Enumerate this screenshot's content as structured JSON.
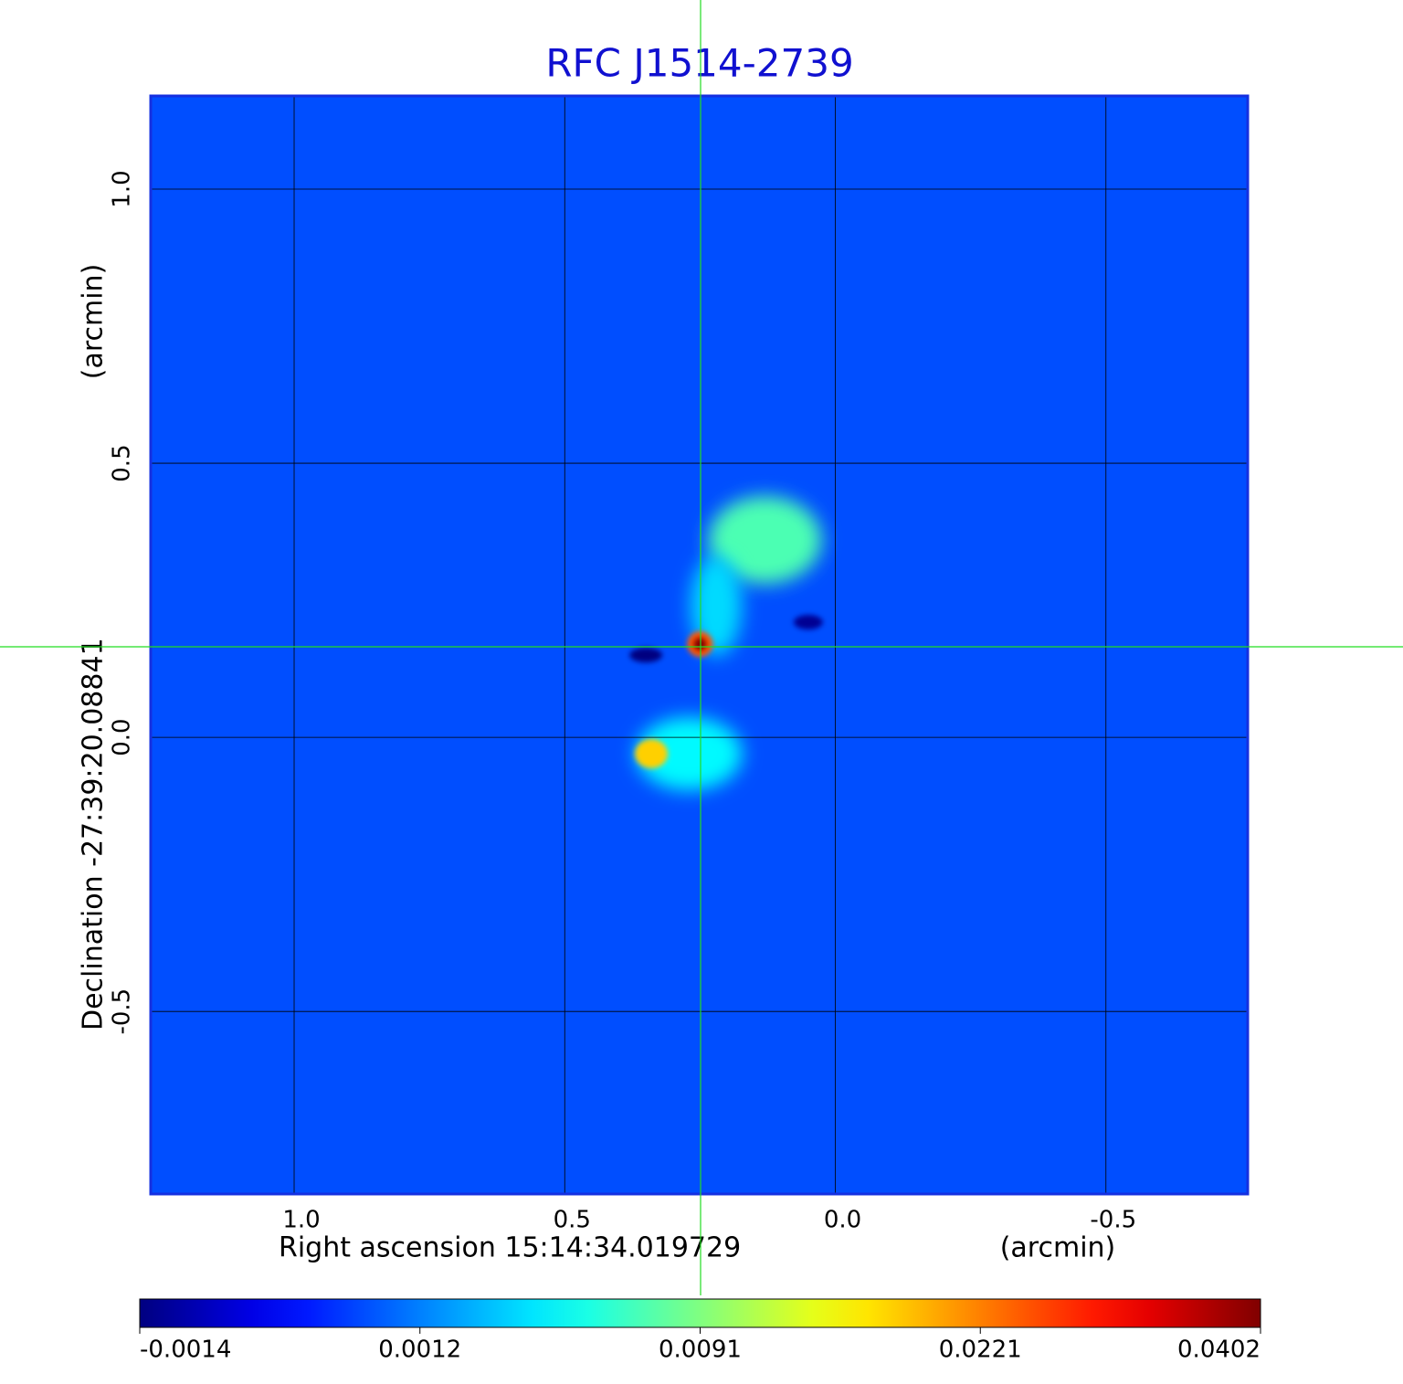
{
  "chart_data": {
    "type": "image",
    "title": "RFC J1514-2739",
    "x_label": "Right ascension  15:14:34.019729",
    "x_unit": "(arcmin)",
    "y_label": "Declination  -27:39:20.08841",
    "y_unit": "(arcmin)",
    "xlim": [
      1.265,
      -0.762
    ],
    "ylim": [
      -0.833,
      1.17
    ],
    "xticks": [
      {
        "value": 1,
        "label": "1.0"
      },
      0.5,
      {
        "value": 0,
        "label": "0.0"
      },
      -0.5
    ],
    "yticks": [
      -0.5,
      {
        "value": 0,
        "label": "0.0"
      },
      0.5,
      {
        "value": 1,
        "label": "1.0"
      }
    ],
    "grid": true,
    "colormap": "jet",
    "colorbar_ticks": [
      -0.0014,
      0.0012,
      0.0091,
      0.0221,
      0.0402
    ],
    "background": 0.0007,
    "components": {
      "x": [
        0.13,
        0.22,
        0.27,
        0.34,
        0.35,
        0.05,
        0.25,
        0.25
      ],
      "y": [
        0.36,
        0.24,
        -0.03,
        -0.03,
        0.15,
        0.21,
        0.17,
        0.17
      ],
      "values": [
        0.0075,
        0.004,
        0.005,
        0.018,
        -0.0014,
        -0.0012,
        0.025,
        0.0402
      ]
    }
  }
}
